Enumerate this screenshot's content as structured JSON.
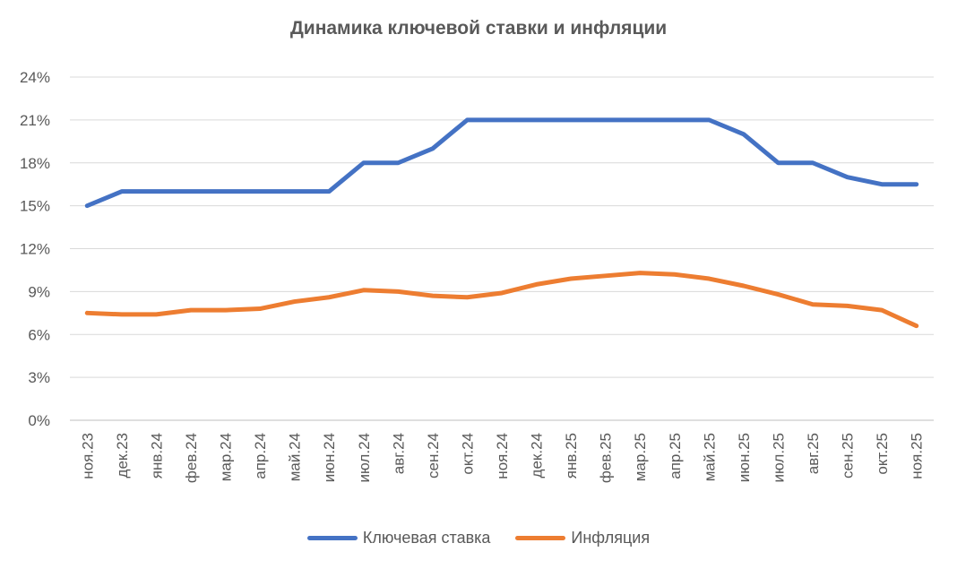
{
  "chart_data": {
    "type": "line",
    "title": "Динамика ключевой ставки и инфляции",
    "xlabel": "",
    "ylabel": "",
    "ylim": [
      0,
      24
    ],
    "yticks": [
      "0%",
      "3%",
      "6%",
      "9%",
      "12%",
      "15%",
      "18%",
      "21%",
      "24%"
    ],
    "grid": true,
    "legend_position": "bottom",
    "categories": [
      "ноя.23",
      "дек.23",
      "янв.24",
      "фев.24",
      "мар.24",
      "апр.24",
      "май.24",
      "июн.24",
      "июл.24",
      "авг.24",
      "сен.24",
      "окт.24",
      "ноя.24",
      "дек.24",
      "янв.25",
      "фев.25",
      "мар.25",
      "апр.25",
      "май.25",
      "июн.25",
      "июл.25",
      "авг.25",
      "сен.25",
      "окт.25",
      "ноя.25"
    ],
    "series": [
      {
        "name": "Ключевая ставка",
        "color": "#4472C4",
        "values": [
          15,
          16,
          16,
          16,
          16,
          16,
          16,
          16,
          18,
          18,
          19,
          21,
          21,
          21,
          21,
          21,
          21,
          21,
          21,
          20,
          18,
          18,
          17,
          16.5,
          16.5
        ]
      },
      {
        "name": "Инфляция",
        "color": "#ED7D31",
        "values": [
          7.5,
          7.4,
          7.4,
          7.7,
          7.7,
          7.8,
          8.3,
          8.6,
          9.1,
          9.0,
          8.7,
          8.6,
          8.9,
          9.5,
          9.9,
          10.1,
          10.3,
          10.2,
          9.9,
          9.4,
          8.8,
          8.1,
          8.0,
          7.7,
          6.6
        ]
      }
    ]
  }
}
